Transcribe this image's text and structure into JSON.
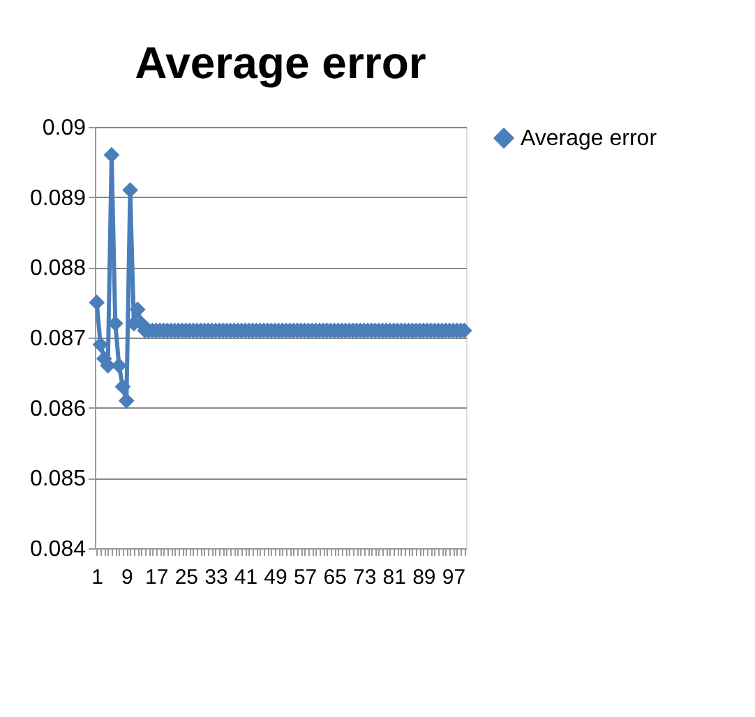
{
  "chart_data": {
    "type": "line",
    "title": "Average error",
    "categories": [
      "1",
      null,
      null,
      null,
      null,
      null,
      null,
      null,
      "9",
      null,
      null,
      null,
      null,
      null,
      null,
      null,
      "17",
      null,
      null,
      null,
      null,
      null,
      null,
      null,
      "25",
      null,
      null,
      null,
      null,
      null,
      null,
      null,
      "33",
      null,
      null,
      null,
      null,
      null,
      null,
      null,
      "41",
      null,
      null,
      null,
      null,
      null,
      null,
      null,
      "49",
      null,
      null,
      null,
      null,
      null,
      null,
      null,
      "57",
      null,
      null,
      null,
      null,
      null,
      null,
      null,
      "65",
      null,
      null,
      null,
      null,
      null,
      null,
      null,
      "73",
      null,
      null,
      null,
      null,
      null,
      null,
      null,
      "81",
      null,
      null,
      null,
      null,
      null,
      null,
      null,
      "89",
      null,
      null,
      null,
      null,
      null,
      null,
      null,
      "97",
      null,
      null,
      null
    ],
    "series": [
      {
        "name": "Average error",
        "color": "#4a7ebb",
        "values": [
          0.0875,
          0.0869,
          0.0867,
          0.0866,
          0.0896,
          0.0872,
          0.0866,
          0.0863,
          0.0861,
          0.0891,
          0.0872,
          0.0874,
          0.0872,
          0.0871,
          0.0871,
          0.0871,
          0.0871,
          0.0871,
          0.0871,
          0.0871,
          0.0871,
          0.0871,
          0.0871,
          0.0871,
          0.0871,
          0.0871,
          0.0871,
          0.0871,
          0.0871,
          0.0871,
          0.0871,
          0.0871,
          0.0871,
          0.0871,
          0.0871,
          0.0871,
          0.0871,
          0.0871,
          0.0871,
          0.0871,
          0.0871,
          0.0871,
          0.0871,
          0.0871,
          0.0871,
          0.0871,
          0.0871,
          0.0871,
          0.0871,
          0.0871,
          0.0871,
          0.0871,
          0.0871,
          0.0871,
          0.0871,
          0.0871,
          0.0871,
          0.0871,
          0.0871,
          0.0871,
          0.0871,
          0.0871,
          0.0871,
          0.0871,
          0.0871,
          0.0871,
          0.0871,
          0.0871,
          0.0871,
          0.0871,
          0.0871,
          0.0871,
          0.0871,
          0.0871,
          0.0871,
          0.0871,
          0.0871,
          0.0871,
          0.0871,
          0.0871,
          0.0871,
          0.0871,
          0.0871,
          0.0871,
          0.0871,
          0.0871,
          0.0871,
          0.0871,
          0.0871,
          0.0871,
          0.0871,
          0.0871,
          0.0871,
          0.0871,
          0.0871,
          0.0871,
          0.0871,
          0.0871,
          0.0871,
          0.0871
        ]
      }
    ],
    "ylim": [
      0.084,
      0.09
    ],
    "yticks": [
      0.084,
      0.085,
      0.086,
      0.087,
      0.088,
      0.089,
      0.09
    ],
    "grid": "y",
    "legend": "right",
    "marker": "diamond",
    "line_style": "solid"
  }
}
